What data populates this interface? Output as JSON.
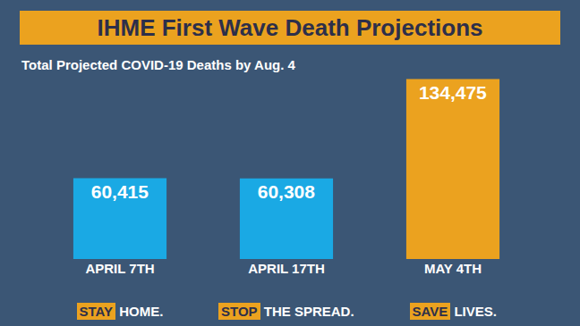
{
  "chart_data": {
    "type": "bar",
    "title": "IHME First Wave Death Projections",
    "subtitle": "Total Projected COVID-19 Deaths by Aug. 4",
    "categories": [
      "APRIL 7TH",
      "APRIL 17TH",
      "MAY 4TH"
    ],
    "values": [
      60415,
      60308,
      134475
    ],
    "value_labels": [
      "60,415",
      "60,308",
      "134,475"
    ],
    "colors": [
      "#1aa9e4",
      "#1aa9e4",
      "#eba21f"
    ],
    "data_labels": true,
    "tick_labels": "x",
    "grid": false,
    "annotations": [
      "STAY HOME.",
      "STOP THE SPREAD.",
      "SAVE LIVES."
    ]
  }
}
